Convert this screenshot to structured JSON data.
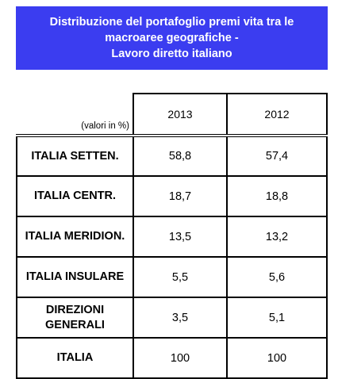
{
  "title": {
    "line1": "Distribuzione del portafoglio premi vita tra le",
    "line2": "macroaree geografiche -",
    "line3": "Lavoro diretto italiano"
  },
  "chart_data": {
    "type": "table",
    "units_note": "(valori in %)",
    "columns": [
      "2013",
      "2012"
    ],
    "rows": [
      {
        "label": "ITALIA SETTEN.",
        "values": [
          "58,8",
          "57,4"
        ]
      },
      {
        "label": "ITALIA CENTR.",
        "values": [
          "18,7",
          "18,8"
        ]
      },
      {
        "label": "ITALIA MERIDION.",
        "values": [
          "13,5",
          "13,2"
        ]
      },
      {
        "label": "ITALIA INSULARE",
        "values": [
          "5,5",
          "5,6"
        ]
      },
      {
        "label": "DIREZIONI GENERALI",
        "values": [
          "3,5",
          "5,1"
        ]
      },
      {
        "label": "ITALIA",
        "values": [
          "100",
          "100"
        ]
      }
    ]
  },
  "colors": {
    "title_background": "#3b3df0",
    "title_text": "#ffffff"
  }
}
